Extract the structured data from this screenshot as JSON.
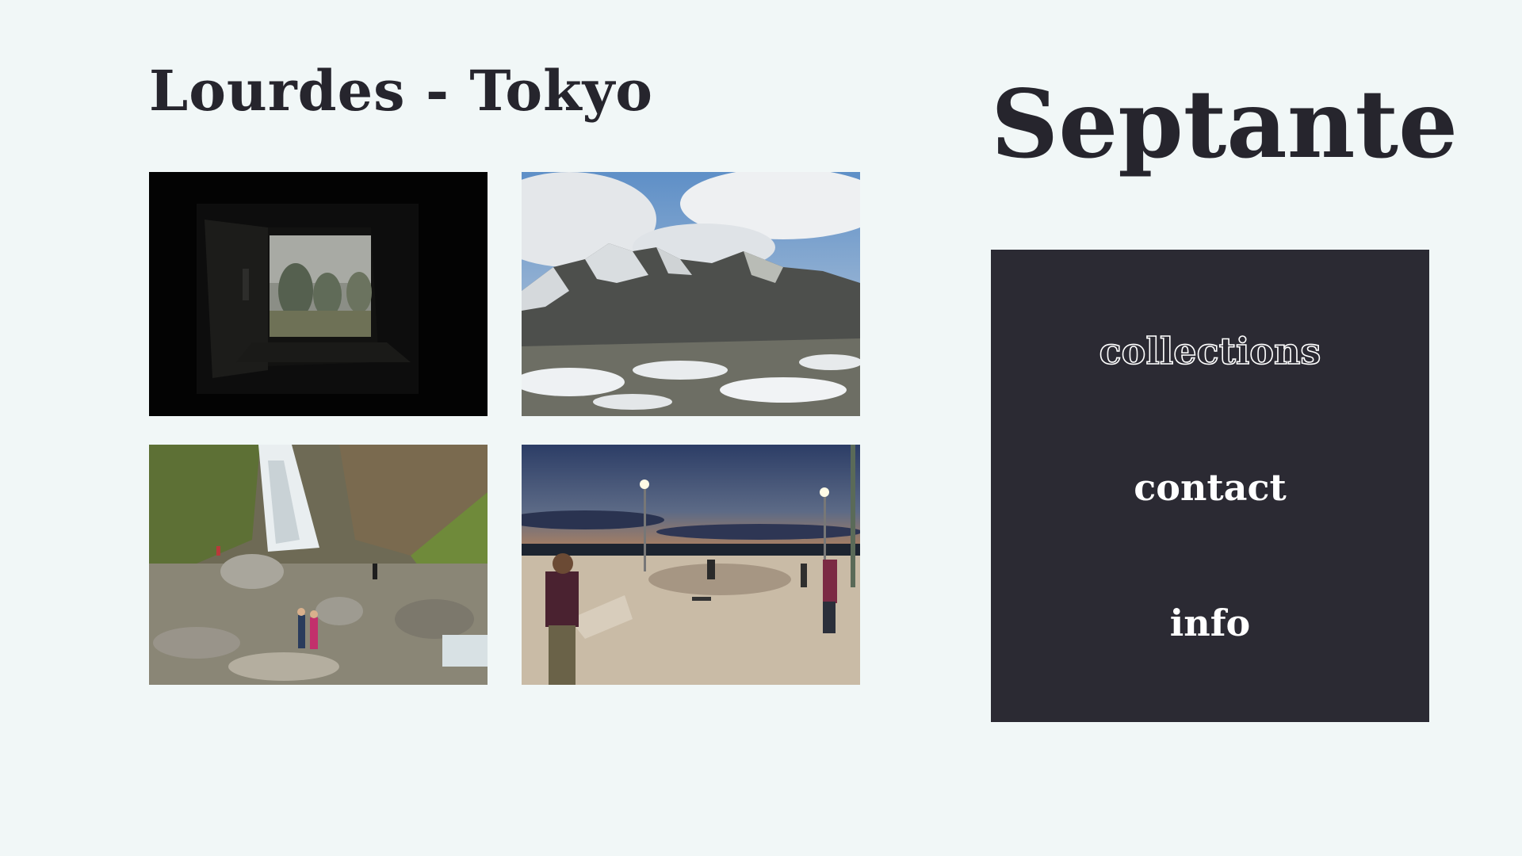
{
  "collection": {
    "title": "Lourdes - Tokyo",
    "photos": [
      {
        "name": "dark-window-fog-photo"
      },
      {
        "name": "snowy-mountain-photo"
      },
      {
        "name": "waterfall-hikers-photo"
      },
      {
        "name": "skatepark-dusk-photo"
      }
    ]
  },
  "brand": {
    "title": "Septante"
  },
  "menu": {
    "items": [
      {
        "label": "collections",
        "style": "outlined"
      },
      {
        "label": "contact",
        "style": "filled"
      },
      {
        "label": "info",
        "style": "filled"
      }
    ]
  },
  "colors": {
    "background": "#f1f7f7",
    "ink": "#26252d",
    "panel": "#2b2a33",
    "panel_text": "#ffffff"
  }
}
